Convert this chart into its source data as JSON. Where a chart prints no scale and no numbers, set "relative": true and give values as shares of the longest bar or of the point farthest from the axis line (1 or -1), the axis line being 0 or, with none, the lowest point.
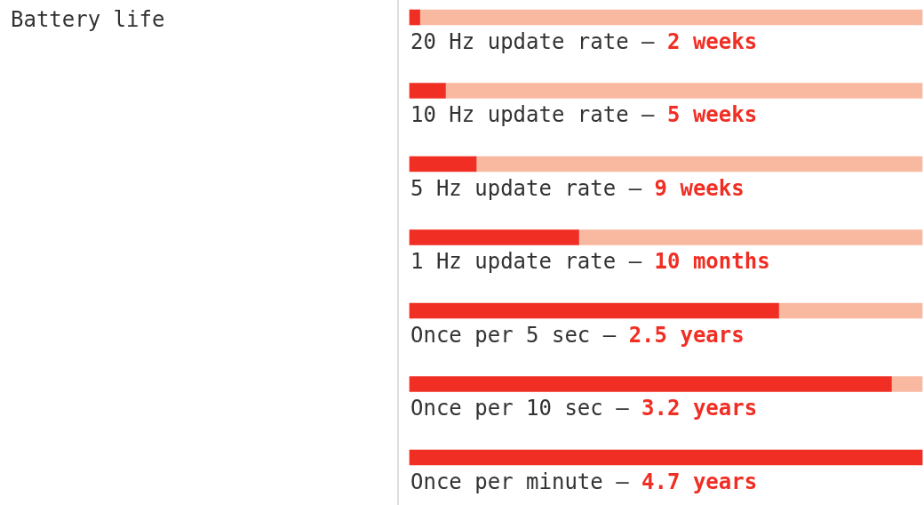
{
  "chart_data": {
    "type": "bar",
    "title": "Battery life",
    "orientation": "horizontal",
    "stacked": true,
    "relative": true,
    "categories": [
      "20 Hz update rate –",
      "10 Hz update rate –",
      "5 Hz update rate –",
      "1 Hz update rate –",
      "Once per 5 sec –",
      "Once per 10 sec –",
      "Once per minute –"
    ],
    "series": [
      {
        "color": "#f02e24",
        "values": [
          0.02,
          0.07,
          0.13,
          0.33,
          0.72,
          0.94,
          1
        ]
      },
      {
        "color": "#f9b8a0",
        "values": [
          0.98,
          0.93,
          0.87,
          0.67,
          0.28,
          0.06,
          0
        ]
      }
    ],
    "annotations": [
      "2 weeks",
      "5 weeks",
      "9 weeks",
      "10 months",
      "2.5 years",
      "3.2 years",
      "4.7 years"
    ]
  }
}
